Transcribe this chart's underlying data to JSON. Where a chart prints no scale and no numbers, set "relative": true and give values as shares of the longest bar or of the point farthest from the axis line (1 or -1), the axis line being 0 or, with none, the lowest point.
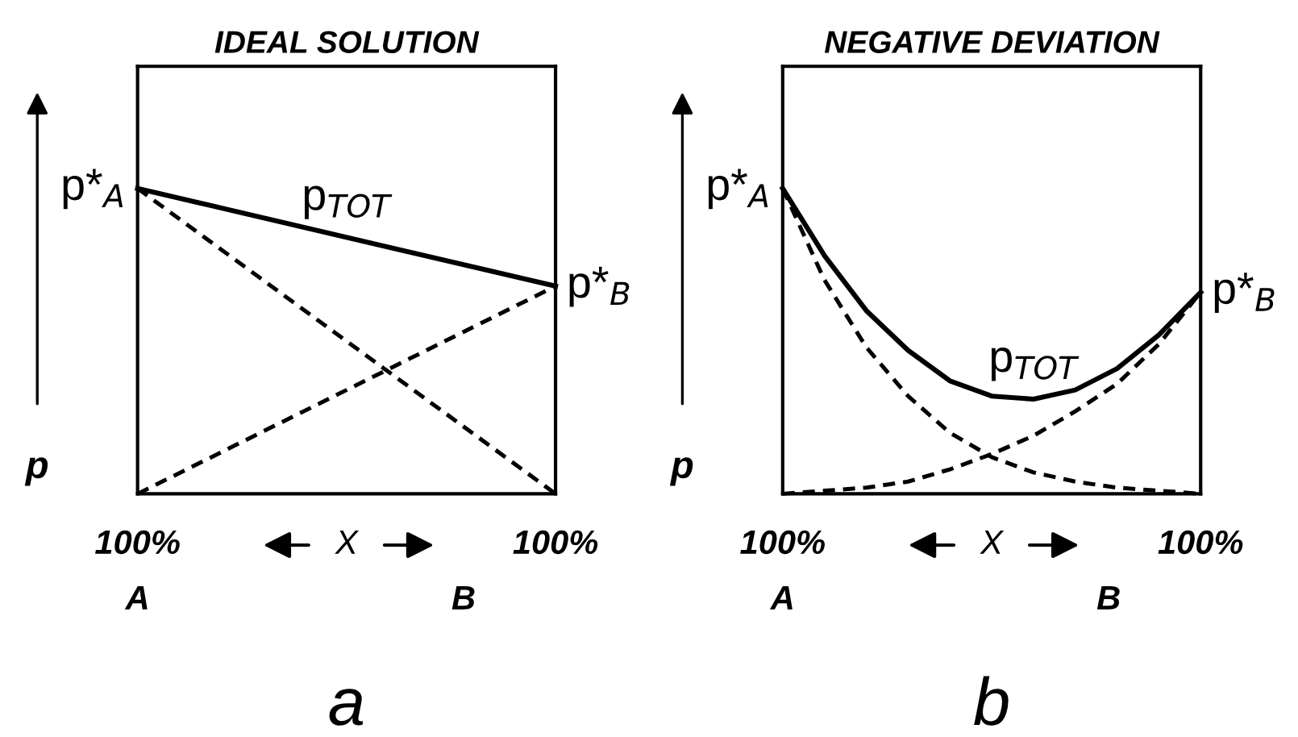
{
  "chart_data": [
    {
      "type": "line",
      "title": "IDEAL SOLUTION",
      "ylabel": "p",
      "xlabel": "X",
      "relative": true,
      "grid": false,
      "categories": [
        null,
        null
      ],
      "series": [
        {
          "color": "#000000",
          "line_style": "solid",
          "values": [
            1,
            0.68
          ]
        },
        {
          "color": "#000000",
          "line_style": "dashed",
          "values": [
            1,
            0
          ]
        },
        {
          "color": "#000000",
          "line_style": "dashed",
          "values": [
            0,
            0.68
          ]
        }
      ],
      "annotations": [
        "p*$_{A}$",
        "p*$_{B}$",
        "p$_{TOT}$",
        "100%",
        "100%",
        "A",
        "B",
        "a"
      ]
    },
    {
      "type": "line",
      "title": "NEGATIVE DEVIATION",
      "ylabel": "p",
      "xlabel": "X",
      "relative": true,
      "grid": false,
      "categories": [
        null,
        null,
        null,
        null,
        null,
        null,
        null,
        null,
        null,
        null,
        null
      ],
      "series": [
        {
          "color": "#000000",
          "line_style": "solid",
          "values": [
            1,
            0.78,
            0.6,
            0.47,
            0.37,
            0.32,
            0.31,
            0.34,
            0.41,
            0.52,
            0.66
          ]
        },
        {
          "color": "#000000",
          "line_style": "dashed",
          "values": [
            1,
            0.7,
            0.48,
            0.32,
            0.2,
            0.12,
            0.07,
            0.04,
            0.02,
            0.01,
            0
          ]
        },
        {
          "color": "#000000",
          "line_style": "dashed",
          "values": [
            0,
            0.01,
            0.02,
            0.04,
            0.08,
            0.13,
            0.19,
            0.27,
            0.36,
            0.49,
            0.66
          ]
        }
      ],
      "annotations": [
        "p*$_{A}$",
        "p*$_{B}$",
        "p$_{TOT}$",
        "100%",
        "100%",
        "A",
        "B",
        "b"
      ]
    }
  ]
}
